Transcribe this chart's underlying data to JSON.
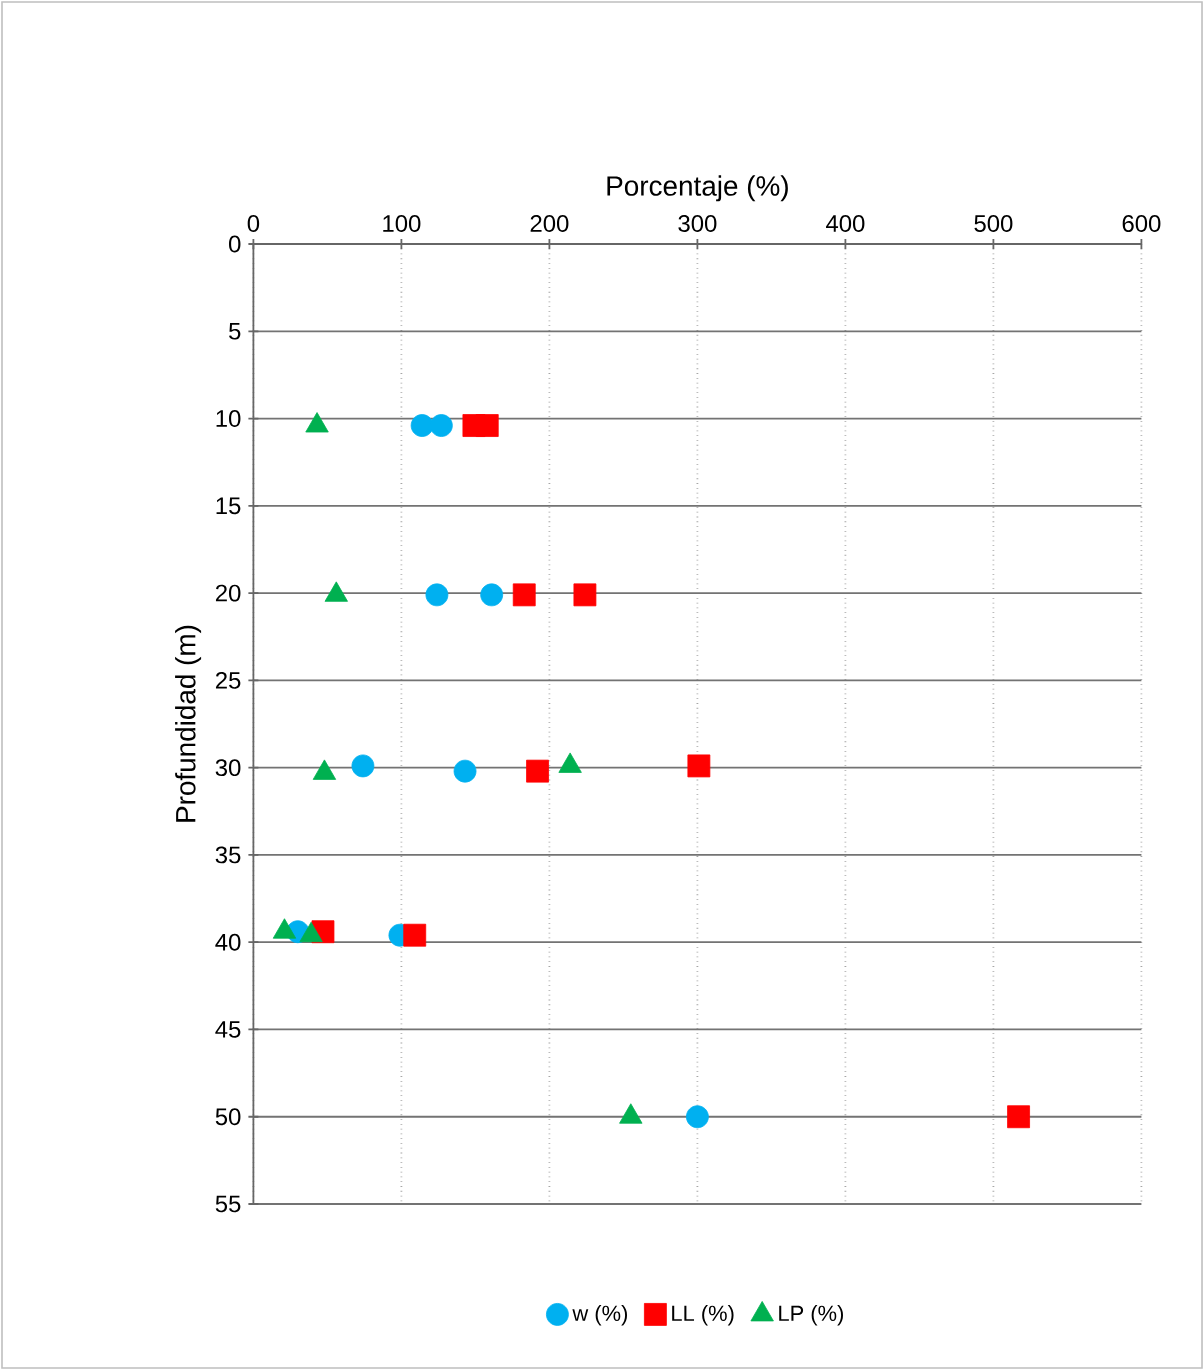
{
  "chart_data": {
    "type": "scatter",
    "xlabel": "Porcentaje (%)",
    "ylabel": "Profundidad (m)",
    "xlim": [
      0,
      600
    ],
    "xticks": [
      0,
      100,
      200,
      300,
      400,
      500,
      600
    ],
    "ylim": [
      55,
      0
    ],
    "yticks": [
      0,
      5,
      10,
      15,
      20,
      25,
      30,
      35,
      40,
      45,
      50,
      55
    ],
    "grid": true,
    "legend": "bottom",
    "series": [
      {
        "name": "w (%)",
        "color": "#00b0f0",
        "marker": "circle",
        "x": [
          114,
          127,
          124,
          161,
          74,
          143,
          30,
          99,
          300
        ],
        "values": [
          10.4,
          10.4,
          20.1,
          20.1,
          29.9,
          30.2,
          39.4,
          39.6,
          50
        ]
      },
      {
        "name": "LL (%)",
        "color": "#ff0000",
        "marker": "square",
        "x": [
          149,
          158,
          183,
          224,
          192,
          301,
          47,
          109,
          517
        ],
        "values": [
          10.4,
          10.4,
          20.1,
          20.1,
          30.2,
          29.9,
          39.4,
          39.6,
          50
        ]
      },
      {
        "name": "LP (%)",
        "color": "#00b050",
        "marker": "triangle",
        "x": [
          43,
          56,
          48,
          214,
          21,
          39,
          255
        ],
        "values": [
          10.4,
          20.1,
          30.3,
          29.9,
          39.4,
          39.6,
          50
        ]
      }
    ]
  }
}
